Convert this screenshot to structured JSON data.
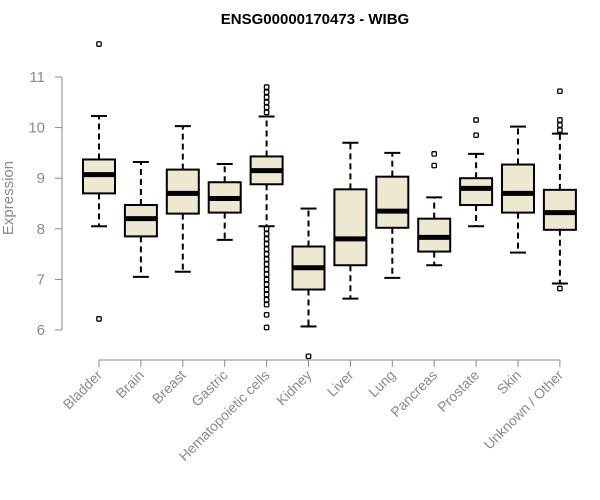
{
  "chart_data": {
    "type": "boxplot",
    "title": "ENSG00000170473 - WIBG",
    "xlabel": "",
    "ylabel": "Expression",
    "ylim": [
      5.4,
      11.9
    ],
    "yticks": [
      6,
      7,
      8,
      9,
      10,
      11
    ],
    "grid": false,
    "categories": [
      "Bladder",
      "Brain",
      "Breast",
      "Gastric",
      "Hematopoietic cells",
      "Kidney",
      "Liver",
      "Lung",
      "Pancreas",
      "Prostate",
      "Skin",
      "Unknown / Other"
    ],
    "boxes": [
      {
        "name": "Bladder",
        "whisker_low": 8.05,
        "q1": 8.7,
        "median": 9.07,
        "q3": 9.37,
        "whisker_high": 10.23,
        "outliers": [
          11.65,
          6.22
        ]
      },
      {
        "name": "Brain",
        "whisker_low": 7.05,
        "q1": 7.85,
        "median": 8.2,
        "q3": 8.47,
        "whisker_high": 9.32,
        "outliers": []
      },
      {
        "name": "Breast",
        "whisker_low": 7.15,
        "q1": 8.3,
        "median": 8.7,
        "q3": 9.17,
        "whisker_high": 10.03,
        "outliers": []
      },
      {
        "name": "Gastric",
        "whisker_low": 7.78,
        "q1": 8.32,
        "median": 8.6,
        "q3": 8.92,
        "whisker_high": 9.28,
        "outliers": []
      },
      {
        "name": "Hematopoietic cells",
        "whisker_low": 8.05,
        "q1": 8.88,
        "median": 9.15,
        "q3": 9.43,
        "whisker_high": 10.22,
        "outliers": [
          10.8,
          10.7,
          10.6,
          10.5,
          10.4,
          10.3,
          8.0,
          7.9,
          7.8,
          7.7,
          7.6,
          7.5,
          7.4,
          7.3,
          7.2,
          7.1,
          7.0,
          6.9,
          6.8,
          6.7,
          6.6,
          6.5,
          6.3,
          6.05
        ]
      },
      {
        "name": "Kidney",
        "whisker_low": 6.07,
        "q1": 6.8,
        "median": 7.23,
        "q3": 7.65,
        "whisker_high": 8.4,
        "outliers": [
          5.48
        ]
      },
      {
        "name": "Liver",
        "whisker_low": 6.62,
        "q1": 7.28,
        "median": 7.8,
        "q3": 8.78,
        "whisker_high": 9.7,
        "outliers": []
      },
      {
        "name": "Lung",
        "whisker_low": 7.03,
        "q1": 8.02,
        "median": 8.35,
        "q3": 9.03,
        "whisker_high": 9.5,
        "outliers": []
      },
      {
        "name": "Pancreas",
        "whisker_low": 7.28,
        "q1": 7.55,
        "median": 7.83,
        "q3": 8.2,
        "whisker_high": 8.62,
        "outliers": [
          9.48,
          9.25
        ]
      },
      {
        "name": "Prostate",
        "whisker_low": 8.05,
        "q1": 8.47,
        "median": 8.8,
        "q3": 9.0,
        "whisker_high": 9.48,
        "outliers": [
          10.15,
          9.85
        ]
      },
      {
        "name": "Skin",
        "whisker_low": 7.53,
        "q1": 8.32,
        "median": 8.7,
        "q3": 9.27,
        "whisker_high": 10.02,
        "outliers": []
      },
      {
        "name": "Unknown / Other",
        "whisker_low": 6.92,
        "q1": 7.98,
        "median": 8.32,
        "q3": 8.77,
        "whisker_high": 9.88,
        "outliers": [
          10.72,
          10.15,
          10.05,
          9.95,
          6.82
        ]
      }
    ],
    "colors": {
      "box_fill": "#efe8d0",
      "box_stroke": "#000000",
      "axis": "#8a8a8a",
      "title": "#000000"
    }
  }
}
